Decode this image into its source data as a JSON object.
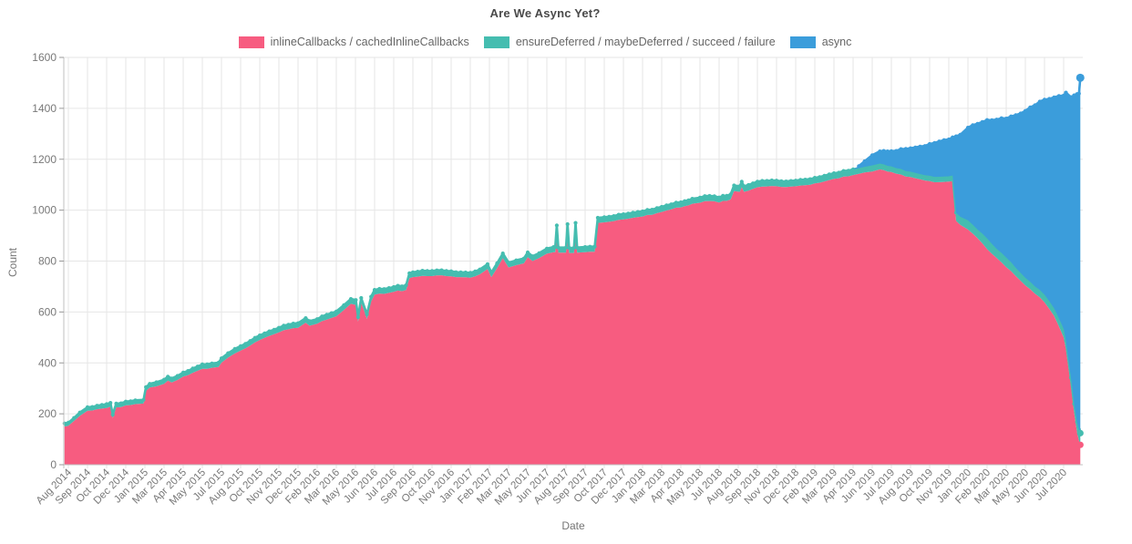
{
  "chart_data": {
    "type": "area",
    "stacked": true,
    "title": "Are We Async Yet?",
    "xlabel": "Date",
    "ylabel": "Count",
    "ylim": [
      0,
      1600
    ],
    "y_ticks": [
      0,
      200,
      400,
      600,
      800,
      1000,
      1200,
      1400,
      1600
    ],
    "grid": true,
    "legend_position": "top",
    "x_tick_labels": [
      "Aug 2014",
      "Sep 2014",
      "Oct 2014",
      "Dec 2014",
      "Jan 2015",
      "Mar 2015",
      "Apr 2015",
      "May 2015",
      "Jul 2015",
      "Aug 2015",
      "Oct 2015",
      "Nov 2015",
      "Dec 2015",
      "Feb 2016",
      "Mar 2016",
      "May 2016",
      "Jun 2016",
      "Jul 2016",
      "Sep 2016",
      "Oct 2016",
      "Nov 2016",
      "Jan 2017",
      "Feb 2017",
      "Mar 2017",
      "May 2017",
      "Jun 2017",
      "Aug 2017",
      "Sep 2017",
      "Oct 2017",
      "Dec 2017",
      "Jan 2018",
      "Mar 2018",
      "Apr 2018",
      "May 2018",
      "Jul 2018",
      "Aug 2018",
      "Sep 2018",
      "Nov 2018",
      "Dec 2018",
      "Feb 2019",
      "Mar 2019",
      "Apr 2019",
      "Jun 2019",
      "Jul 2019",
      "Aug 2019",
      "Oct 2019",
      "Nov 2019",
      "Jan 2020",
      "Feb 2020",
      "Mar 2020",
      "May 2020",
      "Jun 2020",
      "Jul 2020"
    ],
    "series": [
      {
        "name": "inlineCallbacks / cachedInlineCallbacks",
        "color": "#f75c80"
      },
      {
        "name": "ensureDeferred / maybeDeferred / succeed / failure",
        "color": "#45bdb0"
      },
      {
        "name": "async",
        "color": "#3b9ddb"
      }
    ],
    "points_format": "[x_tick_index, inlineCallbacks, ensureDeferred_band, async] (stacked components, values in Count units)",
    "points": [
      [
        -0.2,
        150,
        12,
        0
      ],
      [
        0,
        153,
        12,
        0
      ],
      [
        0.3,
        172,
        12,
        0
      ],
      [
        0.6,
        192,
        13,
        0
      ],
      [
        1,
        212,
        14,
        0
      ],
      [
        1.5,
        218,
        14,
        0
      ],
      [
        2,
        223,
        15,
        0
      ],
      [
        2.2,
        228,
        15,
        0
      ],
      [
        2.32,
        183,
        14,
        0
      ],
      [
        2.5,
        225,
        15,
        0
      ],
      [
        3,
        233,
        15,
        0
      ],
      [
        3.5,
        238,
        15,
        0
      ],
      [
        3.93,
        240,
        15,
        0
      ],
      [
        4.05,
        290,
        15,
        0
      ],
      [
        4.25,
        303,
        15,
        0
      ],
      [
        4.6,
        308,
        16,
        0
      ],
      [
        5,
        318,
        16,
        0
      ],
      [
        5.2,
        330,
        16,
        0
      ],
      [
        5.4,
        323,
        16,
        0
      ],
      [
        5.7,
        333,
        16,
        0
      ],
      [
        6,
        346,
        16,
        0
      ],
      [
        6.5,
        361,
        17,
        0
      ],
      [
        7,
        377,
        17,
        0
      ],
      [
        7.5,
        381,
        17,
        0
      ],
      [
        7.85,
        384,
        17,
        0
      ],
      [
        8,
        401,
        17,
        0
      ],
      [
        8.35,
        421,
        17,
        0
      ],
      [
        8.7,
        437,
        18,
        0
      ],
      [
        9,
        448,
        18,
        0
      ],
      [
        9.5,
        468,
        18,
        0
      ],
      [
        10,
        490,
        18,
        0
      ],
      [
        10.5,
        506,
        18,
        0
      ],
      [
        11,
        520,
        18,
        0
      ],
      [
        11.5,
        532,
        18,
        0
      ],
      [
        12,
        538,
        18,
        0
      ],
      [
        12.4,
        558,
        18,
        0
      ],
      [
        12.6,
        546,
        18,
        0
      ],
      [
        13,
        554,
        18,
        0
      ],
      [
        13.5,
        570,
        19,
        0
      ],
      [
        14,
        583,
        19,
        0
      ],
      [
        14.4,
        608,
        19,
        0
      ],
      [
        14.76,
        632,
        19,
        0
      ],
      [
        15.02,
        628,
        19,
        0
      ],
      [
        15.14,
        562,
        18,
        0
      ],
      [
        15.3,
        636,
        19,
        0
      ],
      [
        15.6,
        573,
        18,
        0
      ],
      [
        15.82,
        641,
        19,
        0
      ],
      [
        16,
        668,
        19,
        0
      ],
      [
        16.5,
        671,
        19,
        0
      ],
      [
        17,
        679,
        19,
        0
      ],
      [
        17.65,
        686,
        19,
        0
      ],
      [
        17.82,
        733,
        19,
        0
      ],
      [
        18,
        737,
        19,
        0
      ],
      [
        18.5,
        742,
        20,
        0
      ],
      [
        19,
        741,
        20,
        0
      ],
      [
        19.5,
        744,
        20,
        0
      ],
      [
        20,
        740,
        20,
        0
      ],
      [
        20.5,
        737,
        19,
        0
      ],
      [
        21,
        735,
        19,
        0
      ],
      [
        21.5,
        748,
        19,
        0
      ],
      [
        21.9,
        769,
        19,
        0
      ],
      [
        22.1,
        737,
        18,
        0
      ],
      [
        22.4,
        772,
        19,
        0
      ],
      [
        22.7,
        811,
        19,
        0
      ],
      [
        23,
        775,
        19,
        0
      ],
      [
        23.4,
        784,
        19,
        0
      ],
      [
        23.8,
        791,
        19,
        0
      ],
      [
        24,
        815,
        19,
        0
      ],
      [
        24.25,
        800,
        19,
        0
      ],
      [
        24.6,
        812,
        19,
        0
      ],
      [
        25,
        829,
        20,
        0
      ],
      [
        25.35,
        835,
        20,
        0
      ],
      [
        25.44,
        835,
        20,
        0
      ],
      [
        25.52,
        920,
        20,
        0
      ],
      [
        25.6,
        833,
        20,
        0
      ],
      [
        26,
        833,
        20,
        0
      ],
      [
        26.08,
        925,
        20,
        0
      ],
      [
        26.16,
        832,
        20,
        0
      ],
      [
        26.42,
        832,
        20,
        0
      ],
      [
        26.5,
        930,
        20,
        0
      ],
      [
        26.58,
        833,
        20,
        0
      ],
      [
        27,
        835,
        20,
        0
      ],
      [
        27.5,
        837,
        20,
        0
      ],
      [
        27.66,
        950,
        20,
        0
      ],
      [
        28,
        952,
        20,
        0
      ],
      [
        28.5,
        957,
        20,
        0
      ],
      [
        29,
        964,
        20,
        0
      ],
      [
        29.5,
        970,
        20,
        0
      ],
      [
        30,
        975,
        20,
        0
      ],
      [
        30.5,
        982,
        20,
        0
      ],
      [
        31,
        993,
        20,
        0
      ],
      [
        31.5,
        1003,
        20,
        0
      ],
      [
        32,
        1011,
        20,
        0
      ],
      [
        32.6,
        1025,
        20,
        0
      ],
      [
        33,
        1029,
        20,
        0
      ],
      [
        33.5,
        1036,
        20,
        0
      ],
      [
        34,
        1030,
        20,
        0
      ],
      [
        34.6,
        1042,
        20,
        0
      ],
      [
        34.78,
        1075,
        22,
        0
      ],
      [
        35.08,
        1072,
        22,
        0
      ],
      [
        35.18,
        1090,
        22,
        0
      ],
      [
        35.3,
        1072,
        22,
        0
      ],
      [
        36,
        1090,
        22,
        0
      ],
      [
        36.5,
        1093,
        22,
        0
      ],
      [
        37,
        1094,
        22,
        0
      ],
      [
        37.5,
        1091,
        22,
        0
      ],
      [
        38,
        1094,
        22,
        0
      ],
      [
        38.5,
        1098,
        22,
        0
      ],
      [
        39,
        1105,
        22,
        0
      ],
      [
        39.5,
        1113,
        22,
        0
      ],
      [
        40,
        1123,
        22,
        0
      ],
      [
        40.5,
        1132,
        22,
        0
      ],
      [
        41,
        1138,
        22,
        0
      ],
      [
        41.3,
        1143,
        22,
        8
      ],
      [
        41.6,
        1148,
        22,
        22
      ],
      [
        42,
        1152,
        24,
        40
      ],
      [
        42.4,
        1160,
        23,
        48
      ],
      [
        43,
        1150,
        22,
        60
      ],
      [
        43.5,
        1140,
        22,
        78
      ],
      [
        44,
        1130,
        21,
        92
      ],
      [
        44.5,
        1121,
        21,
        108
      ],
      [
        45,
        1114,
        21,
        125
      ],
      [
        45.5,
        1110,
        21,
        139
      ],
      [
        46,
        1112,
        21,
        145
      ],
      [
        46.2,
        1114,
        22,
        150
      ],
      [
        46.38,
        958,
        32,
        300
      ],
      [
        46.6,
        942,
        32,
        322
      ],
      [
        47,
        924,
        36,
        364
      ],
      [
        47.5,
        890,
        34,
        415
      ],
      [
        48,
        847,
        42,
        465
      ],
      [
        48.5,
        812,
        36,
        508
      ],
      [
        49,
        776,
        38,
        546
      ],
      [
        49.5,
        741,
        32,
        600
      ],
      [
        50,
        704,
        30,
        656
      ],
      [
        50.5,
        672,
        28,
        712
      ],
      [
        51,
        638,
        30,
        766
      ],
      [
        51.5,
        585,
        30,
        828
      ],
      [
        52,
        500,
        34,
        916
      ],
      [
        52.12,
        455,
        32,
        975
      ],
      [
        52.38,
        310,
        32,
        1102
      ],
      [
        52.55,
        205,
        34,
        1212
      ],
      [
        52.7,
        128,
        40,
        1288
      ],
      [
        52.8,
        95,
        44,
        1319
      ],
      [
        52.87,
        78,
        46,
        1396
      ]
    ]
  },
  "axis_style": {
    "grid_color": "#e6e6e6",
    "axis_color": "#c2c2c2",
    "tick_text_color": "#787878",
    "title_color": "#4a4a4a"
  }
}
